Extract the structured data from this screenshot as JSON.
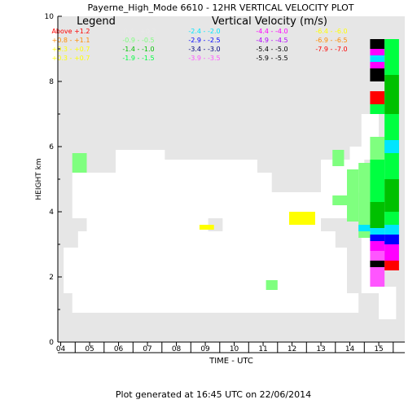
{
  "chart_data": {
    "type": "heatmap",
    "title": "Payerne_High_Mode 6610 - 12HR VERTICAL VELOCITY PLOT",
    "legend_title": "Legend",
    "colorbar_title": "Vertical Velocity (m/s)",
    "xlabel": "TIME - UTC",
    "ylabel": "HEIGHT km",
    "footer": "Plot generated at 16:45 UTC on 22/06/2014",
    "x_ticks": [
      "04",
      "05",
      "06",
      "07",
      "08",
      "09",
      "10",
      "11",
      "12",
      "13",
      "14",
      "15"
    ],
    "y_ticks": [
      "0",
      "2",
      "4",
      "6",
      "8",
      "10"
    ],
    "ylim": [
      0,
      10
    ],
    "xlim": [
      3.9,
      15.9
    ],
    "grid": false,
    "legend_entries": [
      {
        "label": "Above +1.2",
        "color": "#ff0000"
      },
      {
        "label": "-0.4 - +0.2",
        "color": "#ffffff"
      },
      {
        "label": "-2.4 - -2.0",
        "color": "#00e5ff"
      },
      {
        "label": "-4.4 - -4.0",
        "color": "#ff00ff"
      },
      {
        "label": "-6.4 - -6.0",
        "color": "#ffff00"
      },
      {
        "label": "+0.8 - +1.1",
        "color": "#ff8c00"
      },
      {
        "label": "-0.9 - -0.5",
        "color": "#7fff7f"
      },
      {
        "label": "-2.9 - -2.5",
        "color": "#0000ff"
      },
      {
        "label": "-4.9 - -4.5",
        "color": "#b400ff"
      },
      {
        "label": "-6.9 - -6.5",
        "color": "#ff8c00"
      },
      {
        "label": "+0.3 - +0.7",
        "color": "#ffff00"
      },
      {
        "label": "-1.4 - -1.0",
        "color": "#00c000"
      },
      {
        "label": "-3.4 - -3.0",
        "color": "#000080"
      },
      {
        "label": "-5.4 - -5.0",
        "color": "#000000"
      },
      {
        "label": "-7.9 - -7.0",
        "color": "#ff0000"
      },
      {
        "label": "+0.3 - +0.7",
        "color": "#ffff00"
      },
      {
        "label": "-1.9 - -1.5",
        "color": "#00ff40"
      },
      {
        "label": "-3.9 - -3.5",
        "color": "#ff55ff"
      },
      {
        "label": "-5.9 - -5.5",
        "color": "#000000"
      }
    ],
    "colors": {
      "background": "#e6e6e6",
      "near_zero": "#ffffff",
      "weak_down": "#7fff7f",
      "down": "#00ff40",
      "weak_up": "#ffff00",
      "strong_up": "#ff0000"
    },
    "cells": [
      {
        "t0": 4.4,
        "t1": 4.9,
        "h0": 5.2,
        "h1": 5.8,
        "c": "#7fff7f"
      },
      {
        "t0": 8.8,
        "t1": 9.3,
        "h0": 3.45,
        "h1": 3.6,
        "c": "#ffff00"
      },
      {
        "t0": 11.9,
        "t1": 12.8,
        "h0": 3.6,
        "h1": 4.0,
        "c": "#ffff00"
      },
      {
        "t0": 11.1,
        "t1": 11.5,
        "h0": 1.6,
        "h1": 1.9,
        "c": "#7fff7f"
      },
      {
        "t0": 13.4,
        "t1": 13.8,
        "h0": 5.4,
        "h1": 5.9,
        "c": "#7fff7f"
      },
      {
        "t0": 13.4,
        "t1": 13.9,
        "h0": 4.2,
        "h1": 4.5,
        "c": "#7fff7f"
      },
      {
        "t0": 13.9,
        "t1": 14.3,
        "h0": 3.7,
        "h1": 5.3,
        "c": "#7fff7f"
      },
      {
        "t0": 14.3,
        "t1": 14.7,
        "h0": 3.2,
        "h1": 5.5,
        "c": "#7fff7f"
      },
      {
        "t0": 14.3,
        "t1": 14.7,
        "h0": 3.4,
        "h1": 3.6,
        "c": "#00e5ff"
      },
      {
        "t0": 14.7,
        "t1": 15.2,
        "h0": 5.6,
        "h1": 6.3,
        "c": "#7fff7f"
      },
      {
        "t0": 14.7,
        "t1": 15.2,
        "h0": 4.3,
        "h1": 5.6,
        "c": "#00ff40"
      },
      {
        "t0": 14.7,
        "t1": 15.2,
        "h0": 3.5,
        "h1": 4.3,
        "c": "#00c000"
      },
      {
        "t0": 14.7,
        "t1": 15.2,
        "h0": 3.3,
        "h1": 3.5,
        "c": "#00e5ff"
      },
      {
        "t0": 14.7,
        "t1": 15.2,
        "h0": 3.1,
        "h1": 3.3,
        "c": "#0000ff"
      },
      {
        "t0": 14.7,
        "t1": 15.2,
        "h0": 2.8,
        "h1": 3.1,
        "c": "#ff00ff"
      },
      {
        "t0": 14.7,
        "t1": 15.2,
        "h0": 2.5,
        "h1": 2.8,
        "c": "#ff55ff"
      },
      {
        "t0": 14.7,
        "t1": 15.2,
        "h0": 2.3,
        "h1": 2.5,
        "c": "#000000"
      },
      {
        "t0": 14.7,
        "t1": 15.2,
        "h0": 1.7,
        "h1": 2.3,
        "c": "#ff55ff"
      },
      {
        "t0": 14.7,
        "t1": 15.2,
        "h0": 7.3,
        "h1": 7.7,
        "c": "#ff0000"
      },
      {
        "t0": 14.7,
        "t1": 15.2,
        "h0": 7.0,
        "h1": 7.3,
        "c": "#00ff40"
      },
      {
        "t0": 14.7,
        "t1": 15.2,
        "h0": 8.0,
        "h1": 8.4,
        "c": "#000000"
      },
      {
        "t0": 14.7,
        "t1": 15.2,
        "h0": 8.4,
        "h1": 8.6,
        "c": "#ff00ff"
      },
      {
        "t0": 14.7,
        "t1": 15.2,
        "h0": 8.6,
        "h1": 8.8,
        "c": "#00e5ff"
      },
      {
        "t0": 14.7,
        "t1": 15.2,
        "h0": 8.8,
        "h1": 9.0,
        "c": "#ff00ff"
      },
      {
        "t0": 14.7,
        "t1": 15.2,
        "h0": 9.0,
        "h1": 9.3,
        "c": "#000000"
      },
      {
        "t0": 15.2,
        "t1": 15.7,
        "h0": 8.2,
        "h1": 9.3,
        "c": "#00ff40"
      },
      {
        "t0": 15.2,
        "t1": 15.7,
        "h0": 7.0,
        "h1": 8.2,
        "c": "#00c000"
      },
      {
        "t0": 15.2,
        "t1": 15.7,
        "h0": 5.0,
        "h1": 7.0,
        "c": "#00ff40"
      },
      {
        "t0": 15.2,
        "t1": 15.7,
        "h0": 5.8,
        "h1": 6.2,
        "c": "#00e5ff"
      },
      {
        "t0": 15.2,
        "t1": 15.7,
        "h0": 4.0,
        "h1": 5.0,
        "c": "#00c000"
      },
      {
        "t0": 15.2,
        "t1": 15.7,
        "h0": 3.6,
        "h1": 4.0,
        "c": "#00ff40"
      },
      {
        "t0": 15.2,
        "t1": 15.7,
        "h0": 3.3,
        "h1": 3.6,
        "c": "#00e5ff"
      },
      {
        "t0": 15.2,
        "t1": 15.7,
        "h0": 3.0,
        "h1": 3.3,
        "c": "#0000ff"
      },
      {
        "t0": 15.2,
        "t1": 15.7,
        "h0": 2.5,
        "h1": 3.0,
        "c": "#ff00ff"
      },
      {
        "t0": 15.2,
        "t1": 15.7,
        "h0": 2.2,
        "h1": 2.5,
        "c": "#ff0000"
      }
    ]
  }
}
